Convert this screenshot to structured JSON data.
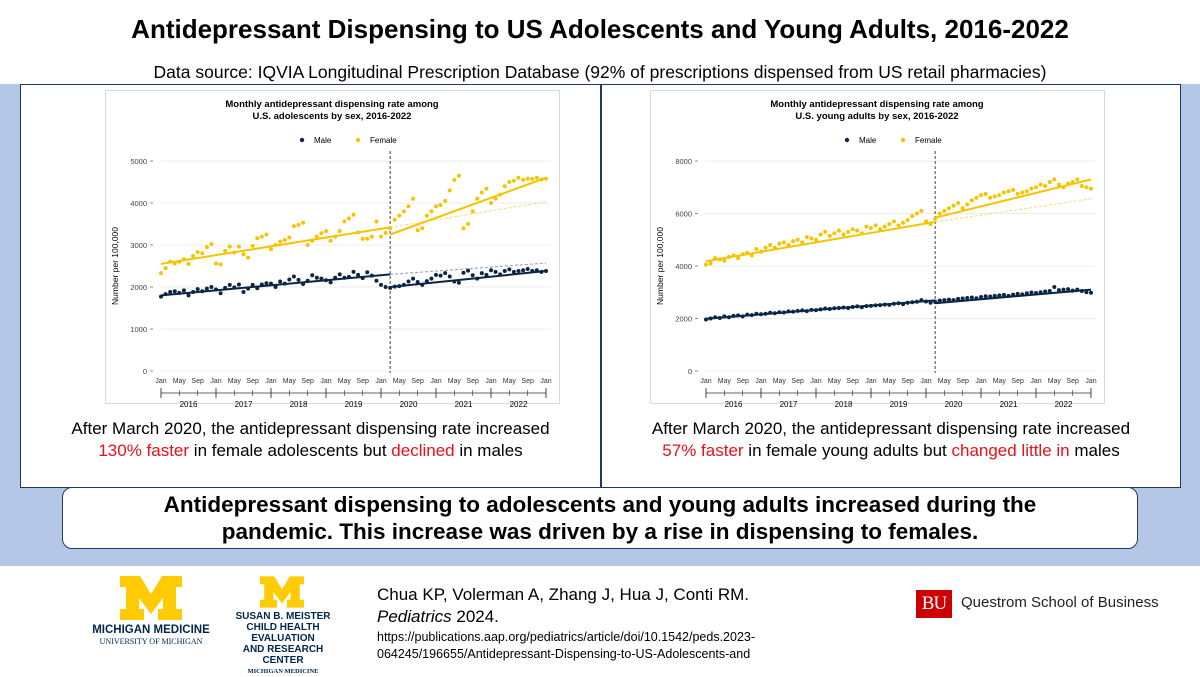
{
  "title": "Antidepressant Dispensing to US Adolescents and Young Adults, 2016-2022",
  "subtitle": "Data source: IQVIA Longitudinal Prescription Database (92% of prescriptions dispensed from US retail pharmacies)",
  "colors": {
    "male": "#0b2545",
    "female": "#f5c400",
    "highlight": "#e8101a",
    "band": "#b4c7e7"
  },
  "chart_data": [
    {
      "type": "scatter",
      "title": "Monthly antidepressant dispensing rate among U.S. adolescents by sex, 2016-2022",
      "title_lines": [
        "Monthly antidepressant dispensing rate among",
        "U.S. adolescents by sex, 2016-2022"
      ],
      "xlabel": "",
      "ylabel": "Number per 100,000",
      "ylim": [
        0,
        5000
      ],
      "yticks": [
        0,
        1000,
        2000,
        3000,
        4000,
        5000
      ],
      "month_ticks": [
        "Jan",
        "May",
        "Sep",
        "Jan",
        "May",
        "Sep",
        "Jan",
        "May",
        "Sep",
        "Jan",
        "May",
        "Sep",
        "Jan",
        "May",
        "Sep",
        "Jan",
        "May",
        "Sep",
        "Jan",
        "May",
        "Sep",
        "Jan"
      ],
      "years": [
        "2016",
        "2017",
        "2018",
        "2019",
        "2020",
        "2021",
        "2022"
      ],
      "legend": [
        "Male",
        "Female"
      ],
      "break": "March 2020",
      "series": [
        {
          "name": "Male",
          "pre_trend": [
            1800,
            2300
          ],
          "post_trend": [
            2000,
            2380
          ],
          "counterfactual_end": 2570,
          "values": [
            1770,
            1830,
            1880,
            1900,
            1860,
            1920,
            1800,
            1880,
            1950,
            1900,
            1960,
            2000,
            1940,
            1850,
            1980,
            2050,
            1990,
            2060,
            1880,
            1960,
            2050,
            1970,
            2060,
            2090,
            2080,
            2000,
            2130,
            2080,
            2180,
            2250,
            2170,
            2070,
            2150,
            2280,
            2220,
            2200,
            2160,
            2110,
            2220,
            2300,
            2220,
            2240,
            2360,
            2290,
            2210,
            2350,
            2270,
            2150,
            2050,
            2000,
            1980,
            2010,
            2020,
            2050,
            2130,
            2200,
            2120,
            2050,
            2140,
            2200,
            2290,
            2270,
            2330,
            2250,
            2130,
            2100,
            2340,
            2390,
            2280,
            2200,
            2330,
            2290,
            2400,
            2360,
            2300,
            2380,
            2420,
            2360,
            2380,
            2400,
            2430,
            2380,
            2400,
            2360,
            2380
          ]
        },
        {
          "name": "Female",
          "pre_trend": [
            2550,
            3420
          ],
          "post_trend": [
            3250,
            4600
          ],
          "counterfactual_end": 4030,
          "values": [
            2330,
            2450,
            2600,
            2560,
            2600,
            2660,
            2550,
            2740,
            2830,
            2800,
            2950,
            3020,
            2560,
            2540,
            2860,
            2960,
            2820,
            2960,
            2780,
            2700,
            2980,
            3160,
            3200,
            3250,
            2900,
            3000,
            3080,
            3120,
            3180,
            3450,
            3480,
            3530,
            3000,
            3100,
            3200,
            3280,
            3330,
            3100,
            3200,
            3330,
            3560,
            3630,
            3720,
            3300,
            3150,
            3150,
            3200,
            3560,
            3200,
            3290,
            3400,
            3600,
            3700,
            3800,
            3920,
            4100,
            3350,
            3400,
            3700,
            3800,
            3920,
            3950,
            4050,
            4300,
            4550,
            4650,
            3400,
            3500,
            3800,
            4100,
            4250,
            4340,
            4000,
            4100,
            4200,
            4400,
            4500,
            4530,
            4600,
            4550,
            4580,
            4570,
            4600,
            4560,
            4580
          ]
        }
      ]
    },
    {
      "type": "scatter",
      "title": "Monthly antidepressant dispensing rate among U.S. young adults by sex, 2016-2022",
      "title_lines": [
        "Monthly antidepressant dispensing rate among",
        "U.S. young adults by sex, 2016-2022"
      ],
      "xlabel": "",
      "ylabel": "Number per 100,000",
      "ylim": [
        0,
        8000
      ],
      "yticks": [
        0,
        2000,
        4000,
        6000,
        8000
      ],
      "month_ticks": [
        "Jan",
        "May",
        "Sep",
        "Jan",
        "May",
        "Sep",
        "Jan",
        "May",
        "Sep",
        "Jan",
        "May",
        "Sep",
        "Jan",
        "May",
        "Sep",
        "Jan",
        "May",
        "Sep",
        "Jan",
        "May",
        "Sep",
        "Jan"
      ],
      "years": [
        "2016",
        "2017",
        "2018",
        "2019",
        "2020",
        "2021",
        "2022"
      ],
      "legend": [
        "Male",
        "Female"
      ],
      "break": "March 2020",
      "series": [
        {
          "name": "Male",
          "pre_trend": [
            1990,
            2690
          ],
          "post_trend": [
            2580,
            3100
          ],
          "counterfactual_end": 3050,
          "values": [
            1960,
            2000,
            2050,
            2020,
            2080,
            2050,
            2100,
            2120,
            2080,
            2150,
            2130,
            2180,
            2160,
            2180,
            2220,
            2200,
            2240,
            2230,
            2270,
            2260,
            2290,
            2310,
            2280,
            2330,
            2320,
            2350,
            2380,
            2360,
            2390,
            2400,
            2420,
            2400,
            2440,
            2460,
            2430,
            2470,
            2480,
            2500,
            2510,
            2530,
            2520,
            2560,
            2580,
            2550,
            2600,
            2620,
            2640,
            2700,
            2650,
            2600,
            2630,
            2680,
            2700,
            2720,
            2700,
            2750,
            2760,
            2780,
            2800,
            2770,
            2820,
            2850,
            2840,
            2860,
            2880,
            2900,
            2860,
            2910,
            2940,
            2920,
            2960,
            2990,
            2970,
            3000,
            3030,
            3050,
            3200,
            3080,
            3100,
            3120,
            3060,
            3100,
            3050,
            3000,
            2980
          ]
        },
        {
          "name": "Female",
          "pre_trend": [
            4180,
            5680
          ],
          "post_trend": [
            5840,
            7300
          ],
          "counterfactual_end": 6560,
          "values": [
            4050,
            4100,
            4300,
            4250,
            4200,
            4350,
            4400,
            4300,
            4450,
            4500,
            4400,
            4650,
            4550,
            4700,
            4800,
            4700,
            4850,
            4900,
            4800,
            4950,
            5000,
            4900,
            5100,
            5050,
            5000,
            5200,
            5300,
            5150,
            5250,
            5350,
            5200,
            5300,
            5400,
            5350,
            5250,
            5500,
            5450,
            5550,
            5400,
            5500,
            5600,
            5700,
            5550,
            5650,
            5750,
            5900,
            6000,
            6100,
            5700,
            5600,
            5800,
            6000,
            6100,
            6200,
            6300,
            6400,
            6200,
            6350,
            6500,
            6600,
            6700,
            6750,
            6600,
            6650,
            6700,
            6800,
            6850,
            6900,
            6750,
            6800,
            6850,
            6950,
            7000,
            7100,
            7050,
            7200,
            7300,
            7100,
            7000,
            7150,
            7200,
            7300,
            7050,
            7000,
            6950
          ]
        }
      ]
    }
  ],
  "panels": {
    "left": {
      "caption_line1": "After March 2020, the antidepressant dispensing rate increased",
      "caption_hl1": "130% faster",
      "caption_mid": " in female adolescents but ",
      "caption_hl2": "declined",
      "caption_end": " in males"
    },
    "right": {
      "caption_line1": "After March 2020, the antidepressant dispensing rate increased",
      "caption_hl1": "57% faster",
      "caption_mid": " in female young adults but ",
      "caption_hl2": "changed little in",
      "caption_end": " males"
    }
  },
  "conclusion": {
    "line1": "Antidepressant dispensing to adolescents and young adults increased during the",
    "line2": "pandemic. This increase was driven by a rise in dispensing to females."
  },
  "footer": {
    "michigan_name": "MICHIGAN MEDICINE",
    "michigan_sub": "UNIVERSITY OF MICHIGAN",
    "meister_line1": "SUSAN B. MEISTER",
    "meister_line2": "CHILD HEALTH EVALUATION",
    "meister_line3": "AND RESEARCH CENTER",
    "meister_line4": "MICHIGAN MEDICINE",
    "citation_authors": "Chua KP, Volerman A, Zhang J, Hua J, Conti RM.",
    "citation_journal": "Pediatrics",
    "citation_year": " 2024.",
    "url_line1": "https://publications.aap.org/pediatrics/article/doi/10.1542/peds.2023-",
    "url_line2": "064245/196655/Antidepressant-Dispensing-to-US-Adolescents-and",
    "bu_logo": "BU",
    "bu_text": "Questrom School of Business"
  }
}
